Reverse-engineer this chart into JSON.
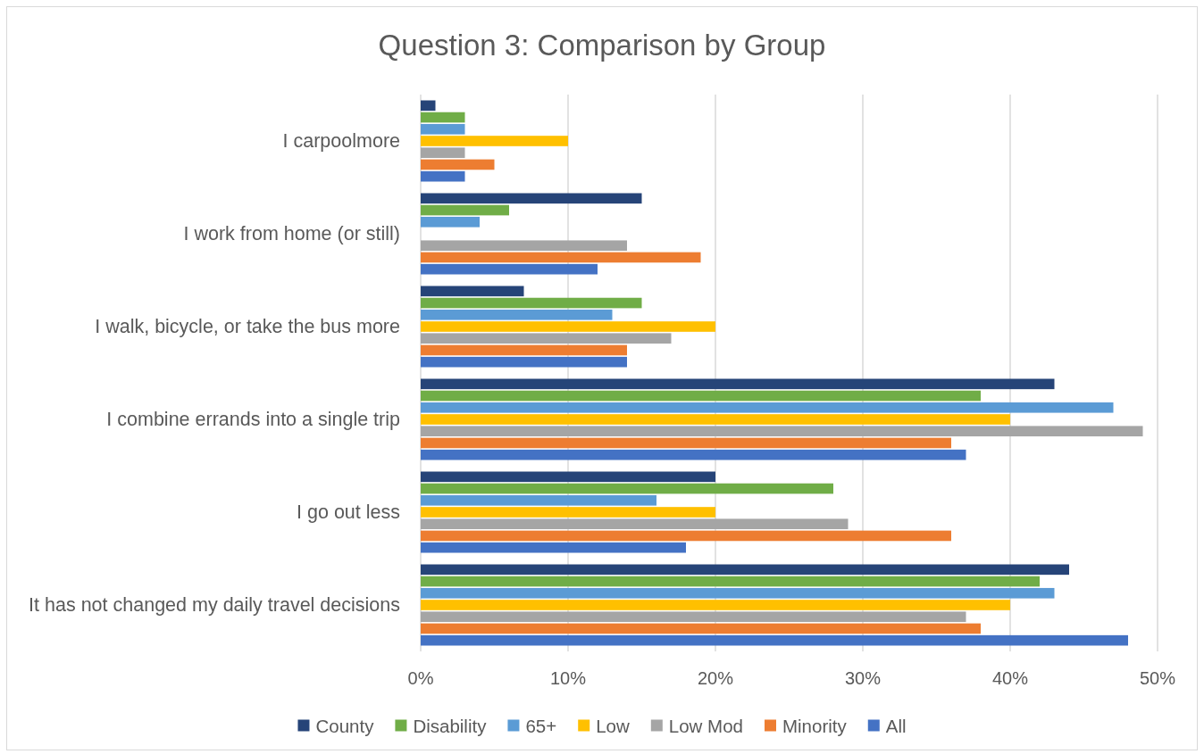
{
  "chart_data": {
    "type": "bar",
    "orientation": "horizontal",
    "title": "Question 3: Comparison by Group",
    "categories": [
      "I carpoolmore",
      "I work from home (or still)",
      "I walk, bicycle, or take the bus more",
      "I combine errands into a single trip",
      "I go out less",
      "It has not changed my daily travel decisions"
    ],
    "series": [
      {
        "name": "County",
        "color": "#264478",
        "values": [
          1,
          15,
          7,
          43,
          20,
          44
        ]
      },
      {
        "name": "Disability",
        "color": "#70ad47",
        "values": [
          3,
          6,
          15,
          38,
          28,
          42
        ]
      },
      {
        "name": "65+",
        "color": "#5b9bd5",
        "values": [
          3,
          4,
          13,
          47,
          16,
          43
        ]
      },
      {
        "name": "Low",
        "color": "#ffc000",
        "values": [
          10,
          null,
          20,
          40,
          20,
          40
        ]
      },
      {
        "name": "Low Mod",
        "color": "#a5a5a5",
        "values": [
          3,
          14,
          17,
          49,
          29,
          37
        ]
      },
      {
        "name": "Minority",
        "color": "#ed7d31",
        "values": [
          5,
          19,
          14,
          36,
          36,
          38
        ]
      },
      {
        "name": "All",
        "color": "#4472c4",
        "values": [
          3,
          12,
          14,
          37,
          18,
          48
        ]
      }
    ],
    "xlim": [
      0,
      50
    ],
    "xticks": [
      {
        "value": 0,
        "label": "0%"
      },
      {
        "value": 10,
        "label": "10%"
      },
      {
        "value": 20,
        "label": "20%"
      },
      {
        "value": 30,
        "label": "30%"
      },
      {
        "value": 40,
        "label": "40%"
      },
      {
        "value": 50,
        "label": "50%"
      }
    ],
    "grid": "x",
    "legend": "bottom"
  }
}
